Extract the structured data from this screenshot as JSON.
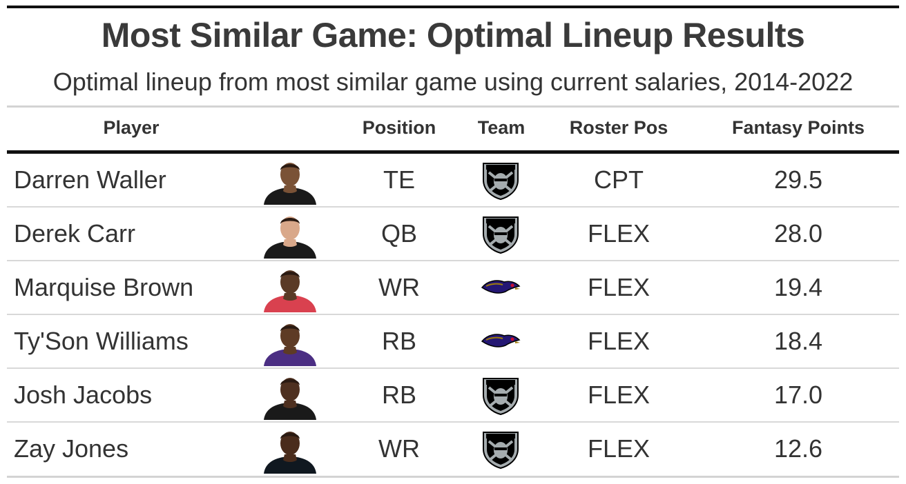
{
  "title": "Most Similar Game: Optimal Lineup Results",
  "subtitle": "Optimal lineup from most similar game using current salaries, 2014-2022",
  "columns": {
    "player": "Player",
    "position": "Position",
    "team": "Team",
    "roster_pos": "Roster Pos",
    "fantasy_points": "Fantasy Points"
  },
  "rows": [
    {
      "player": "Darren Waller",
      "position": "TE",
      "team_logo": "raiders-logo",
      "roster_pos": "CPT",
      "fantasy_points": "29.5",
      "jersey_color": "#1a1a1a",
      "skin_color": "#7a5236"
    },
    {
      "player": "Derek Carr",
      "position": "QB",
      "team_logo": "raiders-logo",
      "roster_pos": "FLEX",
      "fantasy_points": "28.0",
      "jersey_color": "#1a1a1a",
      "skin_color": "#d9a88a"
    },
    {
      "player": "Marquise Brown",
      "position": "WR",
      "team_logo": "ravens-logo",
      "roster_pos": "FLEX",
      "fantasy_points": "19.4",
      "jersey_color": "#d9414f",
      "skin_color": "#5a3a26"
    },
    {
      "player": "Ty'Son Williams",
      "position": "RB",
      "team_logo": "ravens-logo",
      "roster_pos": "FLEX",
      "fantasy_points": "18.4",
      "jersey_color": "#4b2e83",
      "skin_color": "#5e3b25"
    },
    {
      "player": "Josh Jacobs",
      "position": "RB",
      "team_logo": "raiders-logo",
      "roster_pos": "FLEX",
      "fantasy_points": "17.0",
      "jersey_color": "#1a1a1a",
      "skin_color": "#4e3020"
    },
    {
      "player": "Zay Jones",
      "position": "WR",
      "team_logo": "raiders-logo",
      "roster_pos": "FLEX",
      "fantasy_points": "12.6",
      "jersey_color": "#101820",
      "skin_color": "#4a2c1c"
    }
  ],
  "colors": {
    "raiders_silver": "#a5acaf",
    "raiders_black": "#000000",
    "ravens_purple": "#241773",
    "ravens_gold": "#9e7c0c"
  }
}
